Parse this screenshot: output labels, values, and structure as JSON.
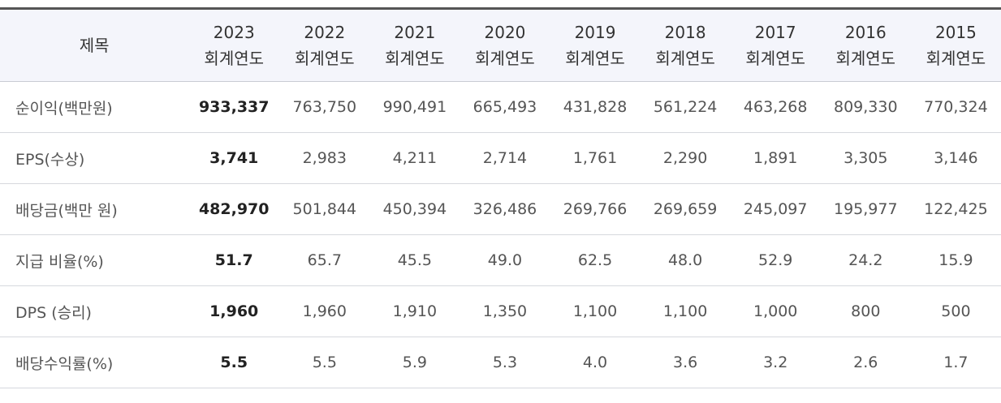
{
  "table": {
    "title_header": "제목",
    "year_suffix": "회계연도",
    "years": [
      "2023",
      "2022",
      "2021",
      "2020",
      "2019",
      "2018",
      "2017",
      "2016",
      "2015"
    ],
    "rows": [
      {
        "label": "순이익(백만원)",
        "values": [
          "933,337",
          "763,750",
          "990,491",
          "665,493",
          "431,828",
          "561,224",
          "463,268",
          "809,330",
          "770,324"
        ]
      },
      {
        "label": "EPS(수상)",
        "values": [
          "3,741",
          "2,983",
          "4,211",
          "2,714",
          "1,761",
          "2,290",
          "1,891",
          "3,305",
          "3,146"
        ]
      },
      {
        "label": "배당금(백만 원)",
        "values": [
          "482,970",
          "501,844",
          "450,394",
          "326,486",
          "269,766",
          "269,659",
          "245,097",
          "195,977",
          "122,425"
        ]
      },
      {
        "label": "지급 비율(%)",
        "values": [
          "51.7",
          "65.7",
          "45.5",
          "49.0",
          "62.5",
          "48.0",
          "52.9",
          "24.2",
          "15.9"
        ]
      },
      {
        "label": "DPS (승리)",
        "values": [
          "1,960",
          "1,960",
          "1,910",
          "1,350",
          "1,100",
          "1,100",
          "1,000",
          "800",
          "500"
        ]
      },
      {
        "label": "배당수익률(%)",
        "values": [
          "5.5",
          "5.5",
          "5.9",
          "5.3",
          "4.0",
          "3.6",
          "3.2",
          "2.6",
          "1.7"
        ]
      }
    ]
  },
  "colors": {
    "header_bg": "#f4f5fb",
    "header_top_border": "#555555",
    "row_border": "#d6d8dd",
    "text": "#555555",
    "highlight_text": "#222222"
  }
}
